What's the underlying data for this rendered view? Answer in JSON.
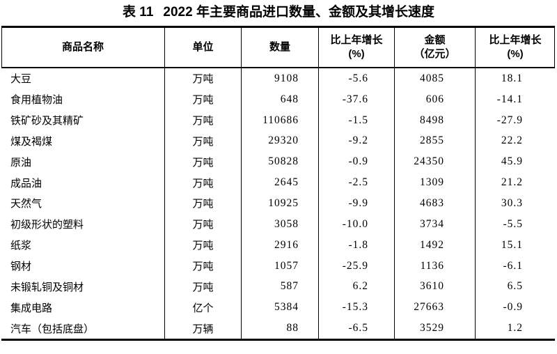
{
  "title": {
    "label": "表 11",
    "text": "2022 年主要商品进口数量、金额及其增长速度"
  },
  "table": {
    "columns": [
      {
        "label": "商品名称",
        "sub": ""
      },
      {
        "label": "单位",
        "sub": ""
      },
      {
        "label": "数量",
        "sub": ""
      },
      {
        "label": "比上年增长",
        "sub": "(%)"
      },
      {
        "label": "金额",
        "sub": "（亿元）"
      },
      {
        "label": "比上年增长",
        "sub": "(%)"
      }
    ],
    "rows": [
      [
        "大豆",
        "万吨",
        "9108",
        "-5.6",
        "4085",
        "18.1"
      ],
      [
        "食用植物油",
        "万吨",
        "648",
        "-37.6",
        "606",
        "-14.1"
      ],
      [
        "铁矿砂及其精矿",
        "万吨",
        "110686",
        "-1.5",
        "8498",
        "-27.9"
      ],
      [
        "煤及褐煤",
        "万吨",
        "29320",
        "-9.2",
        "2855",
        "22.2"
      ],
      [
        "原油",
        "万吨",
        "50828",
        "-0.9",
        "24350",
        "45.9"
      ],
      [
        "成品油",
        "万吨",
        "2645",
        "-2.5",
        "1309",
        "21.2"
      ],
      [
        "天然气",
        "万吨",
        "10925",
        "-9.9",
        "4683",
        "30.3"
      ],
      [
        "初级形状的塑料",
        "万吨",
        "3058",
        "-10.0",
        "3734",
        "-5.5"
      ],
      [
        "纸浆",
        "万吨",
        "2916",
        "-1.8",
        "1492",
        "15.1"
      ],
      [
        "钢材",
        "万吨",
        "1057",
        "-25.9",
        "1136",
        "-6.1"
      ],
      [
        "未锻轧铜及铜材",
        "万吨",
        "587",
        "6.2",
        "3610",
        "6.5"
      ],
      [
        "集成电路",
        "亿个",
        "5384",
        "-15.3",
        "27663",
        "-0.9"
      ],
      [
        "汽车（包括底盘）",
        "万辆",
        "88",
        "-6.5",
        "3529",
        "1.2"
      ]
    ],
    "colors": {
      "border": "#000000",
      "text": "#000000",
      "background": "#ffffff"
    }
  }
}
